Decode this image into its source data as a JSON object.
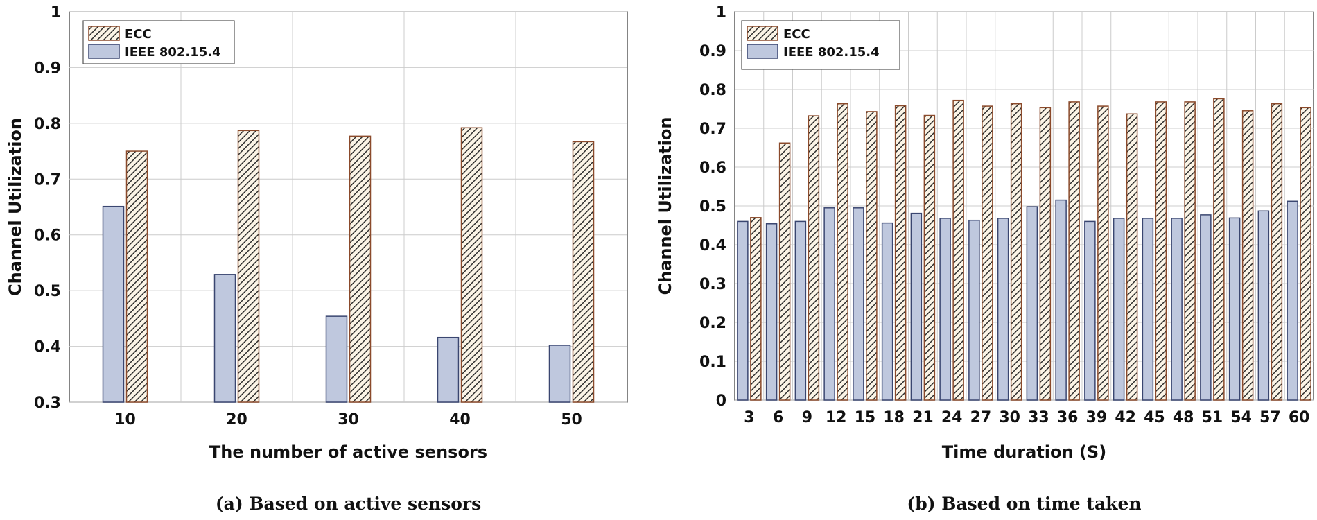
{
  "colors": {
    "ecc_fill": "#fbf4e6",
    "ecc_stroke": "#8b4a2b",
    "ecc_hatch": "#2a2a2a",
    "ieee_fill": "#bfc8de",
    "ieee_stroke": "#3a4670",
    "grid": "#cccccc",
    "axis": "#333333"
  },
  "chart_data": [
    {
      "type": "bar",
      "caption": "(a) Based on active sensors",
      "xlabel": "The number of active sensors",
      "ylabel": "Channel Utilization",
      "ylim": [
        0.3,
        1
      ],
      "yticks": [
        "0.3",
        "0.4",
        "0.5",
        "0.6",
        "0.7",
        "0.8",
        "0.9",
        "1"
      ],
      "grid": true,
      "legend": "top-left",
      "categories": [
        "10",
        "20",
        "30",
        "40",
        "50"
      ],
      "series": [
        {
          "name": "ECC",
          "values": [
            0.75,
            0.787,
            0.777,
            0.792,
            0.767
          ]
        },
        {
          "name": "IEEE  802.15.4",
          "values": [
            0.651,
            0.529,
            0.454,
            0.416,
            0.402
          ]
        }
      ]
    },
    {
      "type": "bar",
      "caption": "(b) Based on time taken",
      "xlabel": "Time duration (S)",
      "ylabel": "Channel Utilization",
      "ylim": [
        0,
        1
      ],
      "yticks": [
        "0",
        "0.1",
        "0.2",
        "0.3",
        "0.4",
        "0.5",
        "0.6",
        "0.7",
        "0.8",
        "0.9",
        "1"
      ],
      "grid": true,
      "legend": "top-left",
      "categories": [
        "3",
        "6",
        "9",
        "12",
        "15",
        "18",
        "21",
        "24",
        "27",
        "30",
        "33",
        "36",
        "39",
        "42",
        "45",
        "48",
        "51",
        "54",
        "57",
        "60"
      ],
      "series": [
        {
          "name": "ECC",
          "values": [
            0.47,
            0.662,
            0.732,
            0.763,
            0.743,
            0.758,
            0.733,
            0.772,
            0.757,
            0.763,
            0.753,
            0.768,
            0.757,
            0.737,
            0.768,
            0.768,
            0.776,
            0.745,
            0.763,
            0.753
          ]
        },
        {
          "name": "IEEE  802.15.4",
          "values": [
            0.46,
            0.454,
            0.46,
            0.495,
            0.495,
            0.456,
            0.481,
            0.468,
            0.463,
            0.468,
            0.498,
            0.515,
            0.46,
            0.468,
            0.468,
            0.468,
            0.477,
            0.469,
            0.487,
            0.512
          ]
        }
      ]
    }
  ]
}
